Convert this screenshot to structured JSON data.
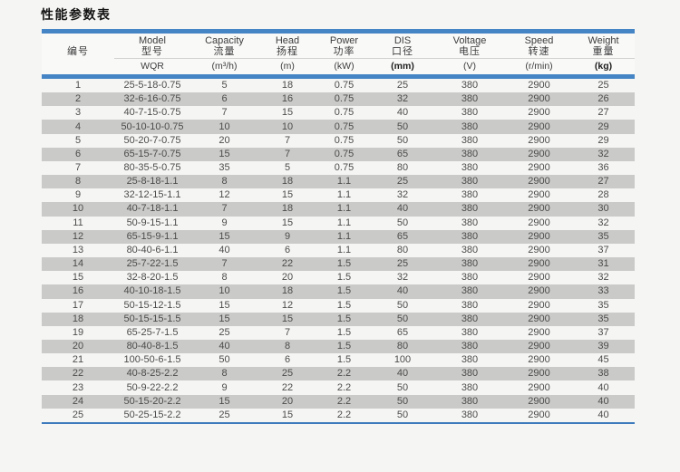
{
  "title": "性能参数表",
  "colors": {
    "accent_blue": "#4585c5",
    "bottom_line_blue": "#3d7abd",
    "shaded_row": "#cacac8",
    "page_background": "#f5f5f3"
  },
  "table": {
    "columns": [
      {
        "key": "no",
        "en": "",
        "zh": "编号",
        "unit": "",
        "unit_bold": false
      },
      {
        "key": "model",
        "en": "Model",
        "zh": "型号",
        "unit": "WQR",
        "unit_bold": false
      },
      {
        "key": "capacity",
        "en": "Capacity",
        "zh": "流量",
        "unit": "(m³/h)",
        "unit_bold": false
      },
      {
        "key": "head",
        "en": "Head",
        "zh": "扬程",
        "unit": "(m)",
        "unit_bold": false
      },
      {
        "key": "power",
        "en": "Power",
        "zh": "功率",
        "unit": "(kW)",
        "unit_bold": false
      },
      {
        "key": "dis",
        "en": "DIS",
        "zh": "口径",
        "unit": "(mm)",
        "unit_bold": true
      },
      {
        "key": "voltage",
        "en": "Voltage",
        "zh": "电压",
        "unit": "(V)",
        "unit_bold": false
      },
      {
        "key": "speed",
        "en": "Speed",
        "zh": "转速",
        "unit": "(r/min)",
        "unit_bold": false
      },
      {
        "key": "weight",
        "en": "Weight",
        "zh": "重量",
        "unit": "(kg)",
        "unit_bold": true
      }
    ],
    "rows": [
      [
        "1",
        "25-5-18-0.75",
        "5",
        "18",
        "0.75",
        "25",
        "380",
        "2900",
        "25"
      ],
      [
        "2",
        "32-6-16-0.75",
        "6",
        "16",
        "0.75",
        "32",
        "380",
        "2900",
        "26"
      ],
      [
        "3",
        "40-7-15-0.75",
        "7",
        "15",
        "0.75",
        "40",
        "380",
        "2900",
        "27"
      ],
      [
        "4",
        "50-10-10-0.75",
        "10",
        "10",
        "0.75",
        "50",
        "380",
        "2900",
        "29"
      ],
      [
        "5",
        "50-20-7-0.75",
        "20",
        "7",
        "0.75",
        "50",
        "380",
        "2900",
        "29"
      ],
      [
        "6",
        "65-15-7-0.75",
        "15",
        "7",
        "0.75",
        "65",
        "380",
        "2900",
        "32"
      ],
      [
        "7",
        "80-35-5-0.75",
        "35",
        "5",
        "0.75",
        "80",
        "380",
        "2900",
        "36"
      ],
      [
        "8",
        "25-8-18-1.1",
        "8",
        "18",
        "1.1",
        "25",
        "380",
        "2900",
        "27"
      ],
      [
        "9",
        "32-12-15-1.1",
        "12",
        "15",
        "1.1",
        "32",
        "380",
        "2900",
        "28"
      ],
      [
        "10",
        "40-7-18-1.1",
        "7",
        "18",
        "1.1",
        "40",
        "380",
        "2900",
        "30"
      ],
      [
        "11",
        "50-9-15-1.1",
        "9",
        "15",
        "1.1",
        "50",
        "380",
        "2900",
        "32"
      ],
      [
        "12",
        "65-15-9-1.1",
        "15",
        "9",
        "1.1",
        "65",
        "380",
        "2900",
        "35"
      ],
      [
        "13",
        "80-40-6-1.1",
        "40",
        "6",
        "1.1",
        "80",
        "380",
        "2900",
        "37"
      ],
      [
        "14",
        "25-7-22-1.5",
        "7",
        "22",
        "1.5",
        "25",
        "380",
        "2900",
        "31"
      ],
      [
        "15",
        "32-8-20-1.5",
        "8",
        "20",
        "1.5",
        "32",
        "380",
        "2900",
        "32"
      ],
      [
        "16",
        "40-10-18-1.5",
        "10",
        "18",
        "1.5",
        "40",
        "380",
        "2900",
        "33"
      ],
      [
        "17",
        "50-15-12-1.5",
        "15",
        "12",
        "1.5",
        "50",
        "380",
        "2900",
        "35"
      ],
      [
        "18",
        "50-15-15-1.5",
        "15",
        "15",
        "1.5",
        "50",
        "380",
        "2900",
        "35"
      ],
      [
        "19",
        "65-25-7-1.5",
        "25",
        "7",
        "1.5",
        "65",
        "380",
        "2900",
        "37"
      ],
      [
        "20",
        "80-40-8-1.5",
        "40",
        "8",
        "1.5",
        "80",
        "380",
        "2900",
        "39"
      ],
      [
        "21",
        "100-50-6-1.5",
        "50",
        "6",
        "1.5",
        "100",
        "380",
        "2900",
        "45"
      ],
      [
        "22",
        "40-8-25-2.2",
        "8",
        "25",
        "2.2",
        "40",
        "380",
        "2900",
        "38"
      ],
      [
        "23",
        "50-9-22-2.2",
        "9",
        "22",
        "2.2",
        "50",
        "380",
        "2900",
        "40"
      ],
      [
        "24",
        "50-15-20-2.2",
        "15",
        "20",
        "2.2",
        "50",
        "380",
        "2900",
        "40"
      ],
      [
        "25",
        "50-25-15-2.2",
        "25",
        "15",
        "2.2",
        "50",
        "380",
        "2900",
        "40"
      ]
    ]
  }
}
